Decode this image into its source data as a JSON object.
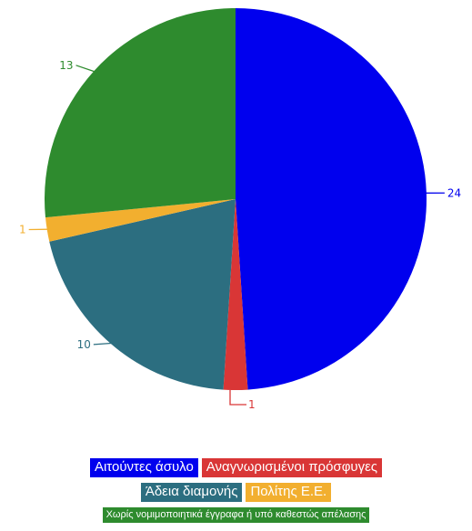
{
  "chart_data": {
    "type": "pie",
    "categories": [
      "Αιτούντες άσυλο",
      "Αναγνωρισμένοι πρόσφυγες",
      "Άδεια διαμονής",
      "Πολίτης Ε.Ε.",
      "Χωρίς νομιμοποιητικά έγγραφα ή υπό καθεστώς απέλασης"
    ],
    "values": [
      24,
      1,
      10,
      1,
      13
    ],
    "colors": [
      "#0000ee",
      "#d93636",
      "#2c6e80",
      "#f2af2f",
      "#2e8b2e"
    ],
    "title": "",
    "legend_position": "bottom",
    "start_angle": "top",
    "direction": "clockwise"
  },
  "legend": {
    "rows": [
      [
        0,
        1
      ],
      [
        2,
        3
      ],
      [
        4
      ]
    ]
  }
}
